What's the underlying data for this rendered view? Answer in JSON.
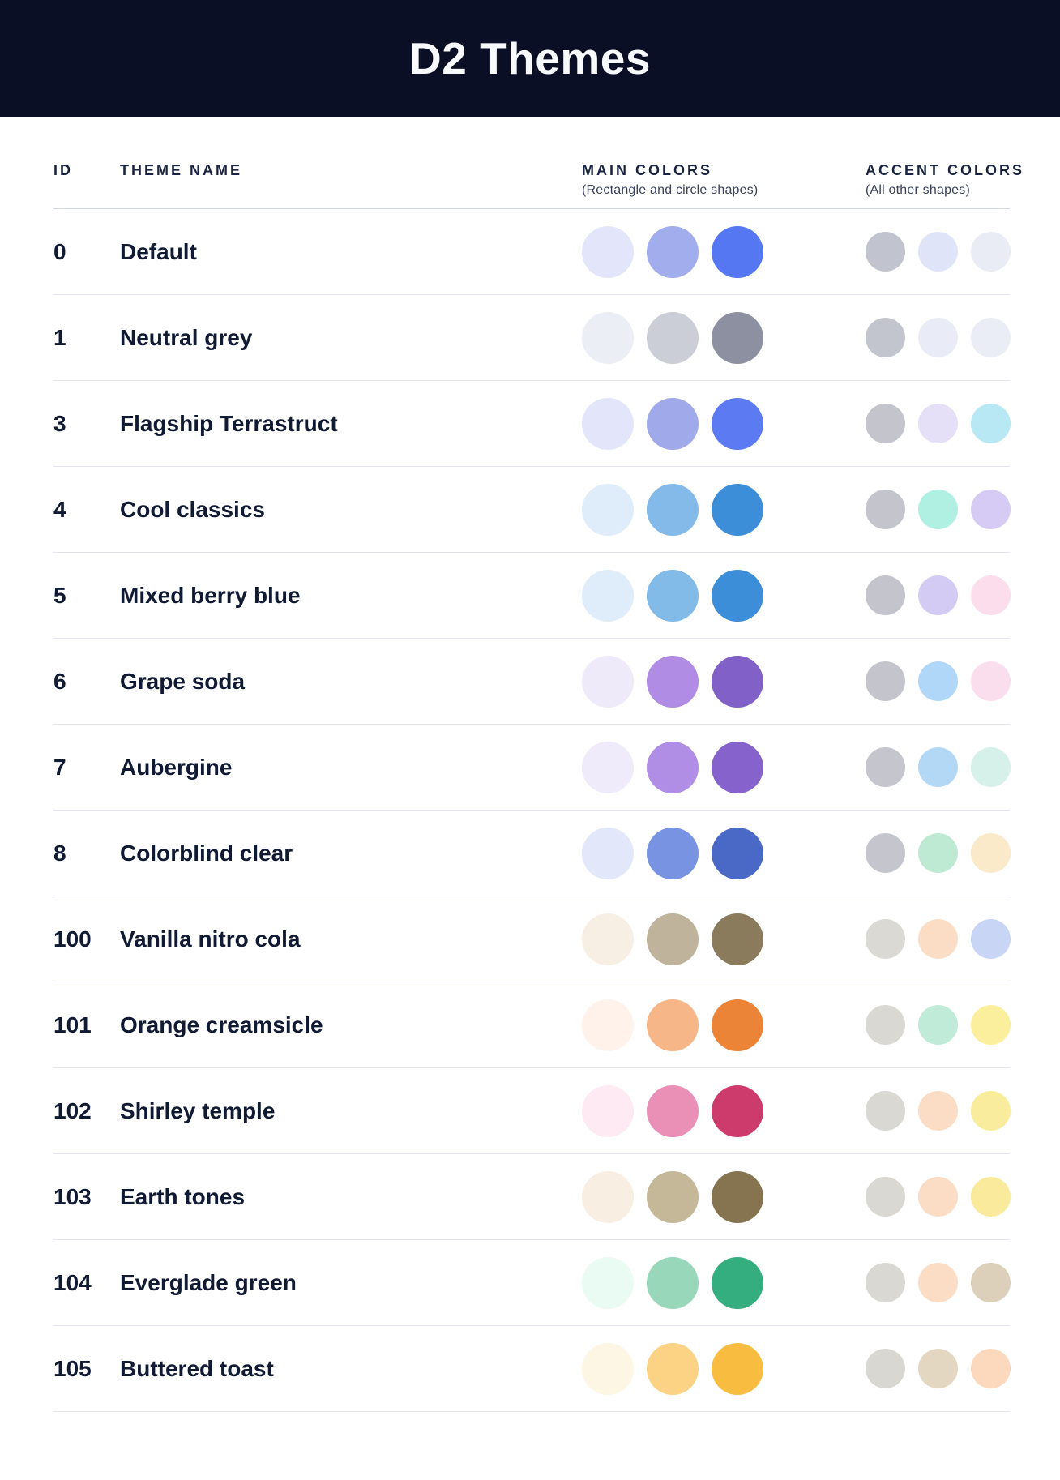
{
  "header": {
    "title": "D2 Themes"
  },
  "columns": {
    "id": "ID",
    "theme_name": "THEME NAME",
    "main_colors": {
      "label": "MAIN COLORS",
      "subtitle": "(Rectangle and circle shapes)"
    },
    "accent_colors": {
      "label": "ACCENT COLORS",
      "subtitle": "(All other shapes)"
    }
  },
  "themes": [
    {
      "id": "0",
      "name": "Default",
      "main": [
        "#E3E6FA",
        "#A2ADED",
        "#5577F1"
      ],
      "accent": [
        "#C1C3CE",
        "#E0E4F8",
        "#E9EBF5"
      ]
    },
    {
      "id": "1",
      "name": "Neutral grey",
      "main": [
        "#ECEEF6",
        "#CBCED6",
        "#8D90A0"
      ],
      "accent": [
        "#C2C4CE",
        "#E9ECF6",
        "#EAEDF5"
      ]
    },
    {
      "id": "3",
      "name": "Flagship Terrastruct",
      "main": [
        "#E3E6FA",
        "#A0AAEB",
        "#5C7AF2"
      ],
      "accent": [
        "#C3C4CC",
        "#E5DFF7",
        "#B9E8F5"
      ]
    },
    {
      "id": "4",
      "name": "Cool classics",
      "main": [
        "#DEEDF9",
        "#83BAE9",
        "#3D8ED9"
      ],
      "accent": [
        "#C3C4CC",
        "#AFF0E3",
        "#D6CBF4"
      ]
    },
    {
      "id": "5",
      "name": "Mixed berry blue",
      "main": [
        "#DEEDF9",
        "#82BAE8",
        "#3C8ED8"
      ],
      "accent": [
        "#C3C4CC",
        "#D4CBF4",
        "#FBDDEC"
      ]
    },
    {
      "id": "6",
      "name": "Grape soda",
      "main": [
        "#EFEAFA",
        "#B08CE5",
        "#8160C8"
      ],
      "accent": [
        "#C3C4CC",
        "#B0D7F7",
        "#FBDEED"
      ]
    },
    {
      "id": "7",
      "name": "Aubergine",
      "main": [
        "#F0EBFB",
        "#B18EE6",
        "#8663CC"
      ],
      "accent": [
        "#C4C5CD",
        "#B3D8F6",
        "#D6F1E9"
      ]
    },
    {
      "id": "8",
      "name": "Colorblind clear",
      "main": [
        "#E2E7F9",
        "#7793E2",
        "#4A69C7"
      ],
      "accent": [
        "#C4C5CD",
        "#BEE9D3",
        "#FAEACA"
      ]
    },
    {
      "id": "100",
      "name": "Vanilla nitro cola",
      "main": [
        "#F8EFE4",
        "#BFB39B",
        "#8A7B5D"
      ],
      "accent": [
        "#DAD9D4",
        "#FBDDC5",
        "#C8D5F5"
      ]
    },
    {
      "id": "101",
      "name": "Orange creamsicle",
      "main": [
        "#FEF2EB",
        "#F7B687",
        "#EC8437"
      ],
      "accent": [
        "#D9D8D2",
        "#C0EBD8",
        "#FBEE9D"
      ]
    },
    {
      "id": "102",
      "name": "Shirley temple",
      "main": [
        "#FDEAF2",
        "#EA90B7",
        "#CD3B6D"
      ],
      "accent": [
        "#D9D8D3",
        "#FBDCC5",
        "#FAEC9D"
      ]
    },
    {
      "id": "103",
      "name": "Earth tones",
      "main": [
        "#F8EFE2",
        "#C5B898",
        "#867451"
      ],
      "accent": [
        "#D9D8D3",
        "#FBDCC4",
        "#FAEB9C"
      ]
    },
    {
      "id": "104",
      "name": "Everglade green",
      "main": [
        "#E9FBF2",
        "#98D7B9",
        "#35AE7F"
      ],
      "accent": [
        "#D9D8D3",
        "#FBDCC5",
        "#DDD0BA"
      ]
    },
    {
      "id": "105",
      "name": "Buttered toast",
      "main": [
        "#FEF6E5",
        "#FCD385",
        "#F8BD40"
      ],
      "accent": [
        "#D8D7D2",
        "#E3D7C1",
        "#FCD8BD"
      ]
    }
  ],
  "colors": {
    "header_bg": "#0A0F25",
    "title_text": "#F8F9FC",
    "heading_text": "#1A2440",
    "subtitle_text": "#39425A",
    "cell_text": "#101A33",
    "header_divider": "#D2D6E2",
    "row_divider": "#E2E4EE"
  }
}
